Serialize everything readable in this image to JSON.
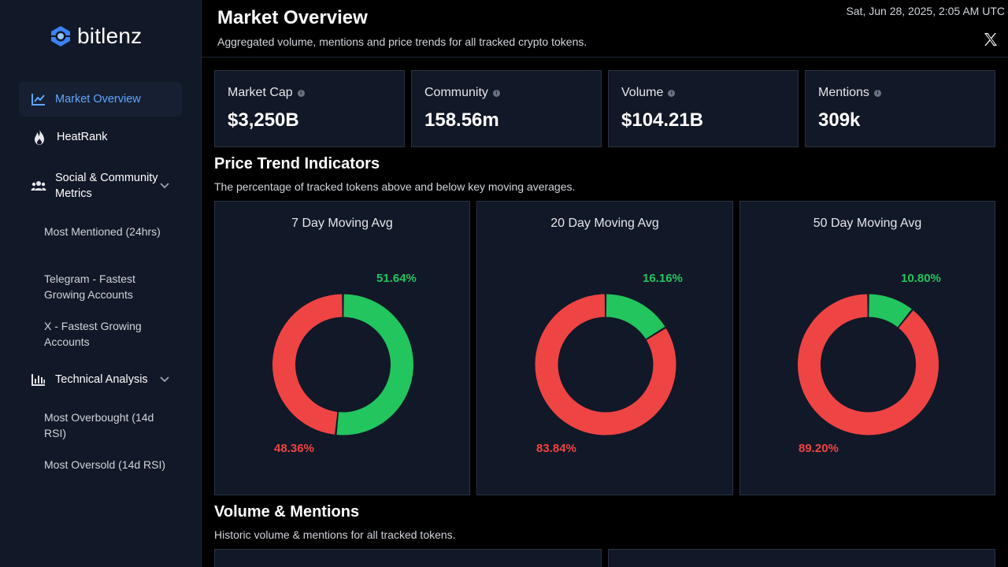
{
  "app": {
    "name": "bitlenz"
  },
  "sidebar": {
    "items": [
      {
        "label": "Market Overview",
        "icon": "chart-line-icon"
      },
      {
        "label": "HeatRank",
        "icon": "fire-icon"
      },
      {
        "label": "Social & Community Metrics",
        "icon": "users-icon"
      },
      {
        "label": "Technical Analysis",
        "icon": "bar-chart-icon"
      }
    ],
    "social_subitems": [
      "Most Mentioned (24hrs)",
      "Telegram - Fastest Growing Accounts",
      "X - Fastest Growing Accounts"
    ],
    "technical_subitems": [
      "Most Overbought (14d RSI)",
      "Most Oversold (14d RSI)"
    ]
  },
  "header": {
    "title": "Market Overview",
    "subtitle": "Aggregated volume, mentions and price trends for all tracked crypto tokens.",
    "datetime": "Sat, Jun 28, 2025, 2:05 AM UTC"
  },
  "stats": [
    {
      "label": "Market Cap",
      "value": "$3,250B"
    },
    {
      "label": "Community",
      "value": "158.56m"
    },
    {
      "label": "Volume",
      "value": "$104.21B"
    },
    {
      "label": "Mentions",
      "value": "309k"
    }
  ],
  "price_trend": {
    "title": "Price Trend Indicators",
    "subtitle": "The percentage of tracked tokens above and below key moving averages."
  },
  "chart_data": [
    {
      "type": "pie",
      "title": "7 Day Moving Avg",
      "values": [
        51.64,
        48.36
      ],
      "labels": [
        "51.64%",
        "48.36%"
      ],
      "colors": [
        "#22c55e",
        "#ef4444"
      ]
    },
    {
      "type": "pie",
      "title": "20 Day Moving Avg",
      "values": [
        16.16,
        83.84
      ],
      "labels": [
        "16.16%",
        "83.84%"
      ],
      "colors": [
        "#22c55e",
        "#ef4444"
      ]
    },
    {
      "type": "pie",
      "title": "50 Day Moving Avg",
      "values": [
        10.8,
        89.2
      ],
      "labels": [
        "10.80%",
        "89.20%"
      ],
      "colors": [
        "#22c55e",
        "#ef4444"
      ]
    }
  ],
  "volume_mentions": {
    "title": "Volume & Mentions",
    "subtitle": "Historic volume & mentions for all tracked tokens."
  },
  "colors": {
    "accent": "#60a5fa",
    "positive": "#22c55e",
    "negative": "#ef4444",
    "panel": "#111827"
  }
}
